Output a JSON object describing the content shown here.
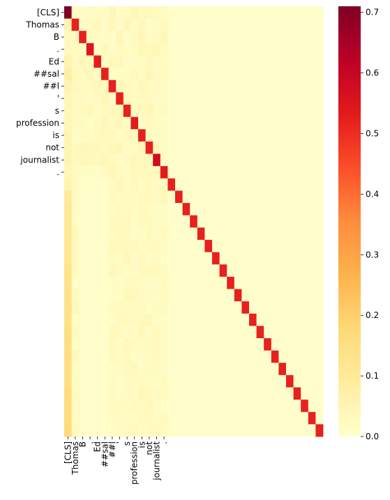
{
  "chart_data": {
    "type": "heatmap",
    "title": "",
    "xlabel": "",
    "ylabel": "",
    "tokens": [
      "[CLS]",
      "Thomas",
      "B",
      ".",
      "Ed",
      "##sal",
      "##l",
      "'",
      "s",
      "profession",
      "is",
      "not",
      "journalist",
      "."
    ],
    "sequence_length": 35,
    "diagonal_values": [
      0.71,
      0.52,
      0.52,
      0.55,
      0.53,
      0.52,
      0.52,
      0.52,
      0.52,
      0.53,
      0.52,
      0.52,
      0.58,
      0.53,
      0.52,
      0.52,
      0.52,
      0.52,
      0.52,
      0.52,
      0.52,
      0.52,
      0.52,
      0.52,
      0.52,
      0.52,
      0.52,
      0.52,
      0.52,
      0.52,
      0.52,
      0.52,
      0.52,
      0.52,
      0.52
    ],
    "first_column_values": [
      0.71,
      0.05,
      0.03,
      0.03,
      0.06,
      0.08,
      0.05,
      0.04,
      0.04,
      0.04,
      0.05,
      0.05,
      0.05,
      0.04,
      0.06,
      0.1,
      0.11,
      0.11,
      0.11,
      0.12,
      0.12,
      0.13,
      0.13,
      0.14,
      0.14,
      0.14,
      0.15,
      0.15,
      0.15,
      0.15,
      0.15,
      0.16,
      0.16,
      0.16,
      0.17
    ],
    "background_value": 0.01,
    "padding_columns_value": 0.005,
    "colorbar": {
      "colormap": "YlOrRd",
      "vmin": 0.0,
      "vmax": 0.71,
      "ticks": [
        "0.0",
        "0.1",
        "0.2",
        "0.3",
        "0.4",
        "0.5",
        "0.6",
        "0.7"
      ],
      "tick_values": [
        0.0,
        0.1,
        0.2,
        0.3,
        0.4,
        0.5,
        0.6,
        0.7
      ]
    }
  }
}
